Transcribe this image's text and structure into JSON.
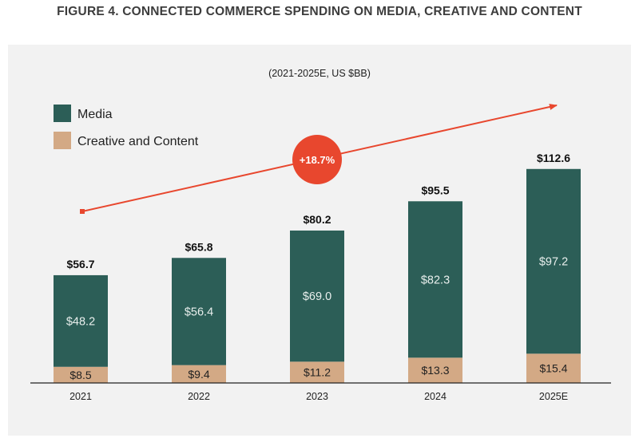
{
  "figure_title": "FIGURE 4. CONNECTED COMMERCE SPENDING ON MEDIA, CREATIVE AND CONTENT",
  "colors": {
    "media": "#2c5e57",
    "creative": "#d3a985",
    "accent": "#e8472e",
    "panel": "#f2f2f2"
  },
  "chart_data": {
    "type": "bar",
    "stacked": true,
    "title": "FIGURE 4. CONNECTED COMMERCE SPENDING ON MEDIA, CREATIVE AND CONTENT",
    "subtitle": "(2021-2025E, US $BB)",
    "categories": [
      "2021",
      "2022",
      "2023",
      "2024",
      "2025E"
    ],
    "series": [
      {
        "name": "Creative and Content",
        "values": [
          8.5,
          9.4,
          11.2,
          13.3,
          15.4
        ],
        "labels": [
          "$8.5",
          "$9.4",
          "$11.2",
          "$13.3",
          "$15.4"
        ]
      },
      {
        "name": "Media",
        "values": [
          48.2,
          56.4,
          69.0,
          82.3,
          97.2
        ],
        "labels": [
          "$48.2",
          "$56.4",
          "$69.0",
          "$82.3",
          "$97.2"
        ]
      }
    ],
    "totals": [
      56.7,
      65.8,
      80.2,
      95.5,
      112.6
    ],
    "total_labels": [
      "$56.7",
      "$65.8",
      "$80.2",
      "$95.5",
      "$112.6"
    ],
    "legend": [
      "Media",
      "Creative and Content"
    ],
    "legend_position": "top-left",
    "annotation": "+18.7%",
    "ylim": [
      0,
      120
    ],
    "grid": false
  }
}
